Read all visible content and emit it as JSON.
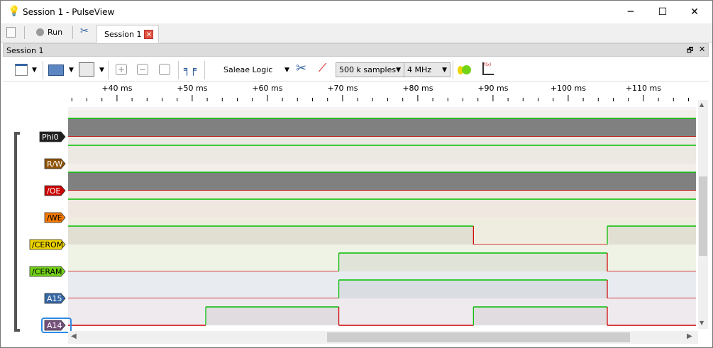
{
  "window": {
    "title": "Session 1 - PulseView",
    "minimize": "─",
    "maximize": "☐",
    "close": "✕"
  },
  "tabbar": {
    "run_label": "Run",
    "session_tab": "Session 1",
    "close": "✕"
  },
  "dock": {
    "title": "Session 1",
    "float": "🗗",
    "close": "✕"
  },
  "toolbar": {
    "device": "Saleae Logic",
    "samples": "500 k samples",
    "rate": "4 MHz"
  },
  "ruler": {
    "ticks": [
      "+40 ms",
      "+50 ms",
      "+60 ms",
      "+70 ms",
      "+80 ms",
      "+90 ms",
      "+100 ms",
      "+110 ms"
    ]
  },
  "view": {
    "range_ms": [
      33.5,
      117
    ]
  },
  "channels": [
    {
      "name": "Phi0",
      "color": "#1f1f1f",
      "bg": "#f3f0ec",
      "type": "clock"
    },
    {
      "name": "R/W",
      "color": "#8f5202",
      "bg": "#ece8e2",
      "type": "static",
      "level": 1
    },
    {
      "name": "/OE",
      "color": "#cc0000",
      "bg": "#f3eeea",
      "type": "clock"
    },
    {
      "name": "/WE",
      "color": "#f57900",
      "bg": "#f0e8e0",
      "type": "static",
      "level": 1
    },
    {
      "name": "/CEROM",
      "color": "#edd400",
      "bg": "#efede0",
      "type": "edges",
      "initial": 1,
      "edges_ms": [
        87.4,
        105.2
      ]
    },
    {
      "name": "/CERAM",
      "color": "#73d216",
      "bg": "#eef3e6",
      "type": "edges",
      "initial": 0,
      "edges_ms": [
        69.5,
        105.2
      ]
    },
    {
      "name": "A15",
      "color": "#3465a4",
      "bg": "#e8ebf0",
      "type": "edges",
      "initial": 0,
      "edges_ms": [
        69.5,
        105.2
      ]
    },
    {
      "name": "A14",
      "color": "#75507b",
      "bg": "#eeeaee",
      "type": "edges",
      "initial": 0,
      "edges_ms": [
        51.8,
        69.5,
        87.4,
        105.2
      ],
      "selected": true
    }
  ],
  "colors": {
    "high": "#00c000",
    "low": "#d00000"
  }
}
